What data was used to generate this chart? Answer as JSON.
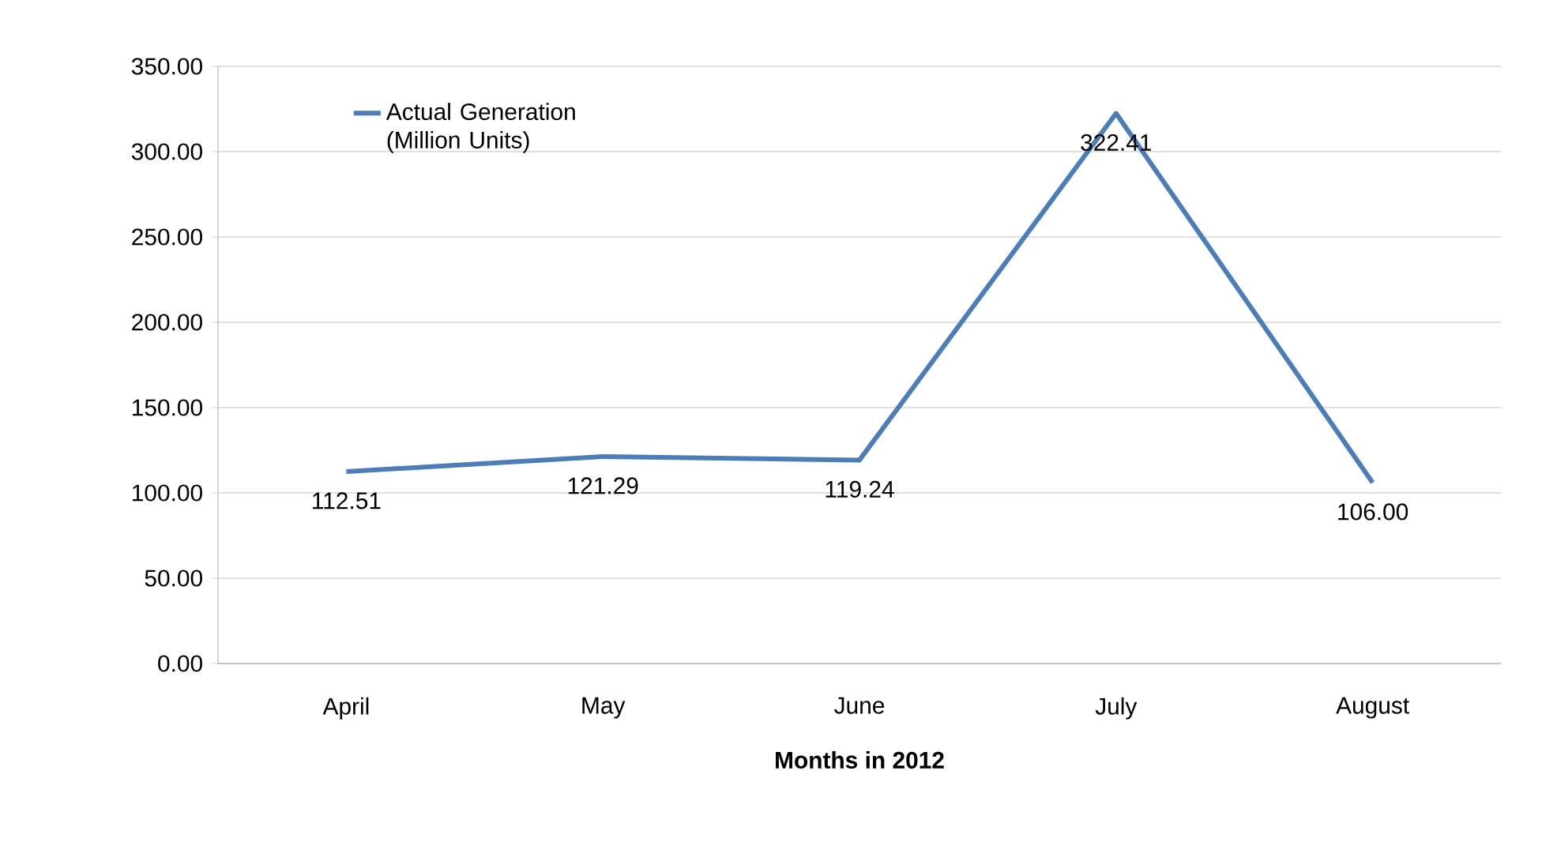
{
  "chart_data": {
    "type": "line",
    "xlabel": "Months in 2012",
    "categories": [
      "April",
      "May",
      "June",
      "July",
      "August"
    ],
    "series": [
      {
        "name": "Actual Generation (Million Units)",
        "color": "#4a7ebb",
        "values": [
          112.51,
          121.29,
          119.24,
          322.41,
          106.0
        ],
        "value_labels": [
          "112.51",
          "121.29",
          "119.24",
          "322.41",
          "106.00"
        ]
      }
    ],
    "ylim": [
      0,
      350
    ],
    "yticks": [
      {
        "value": 0,
        "label": "0.00"
      },
      {
        "value": 50,
        "label": "50.00"
      },
      {
        "value": 100,
        "label": "100.00"
      },
      {
        "value": 150,
        "label": "150.00"
      },
      {
        "value": 200,
        "label": "200.00"
      },
      {
        "value": 250,
        "label": "250.00"
      },
      {
        "value": 300,
        "label": "300.00"
      },
      {
        "value": 350,
        "label": "350.00"
      }
    ],
    "grid": "y",
    "legend": "top left",
    "marker": "none",
    "line_style": "solid"
  }
}
